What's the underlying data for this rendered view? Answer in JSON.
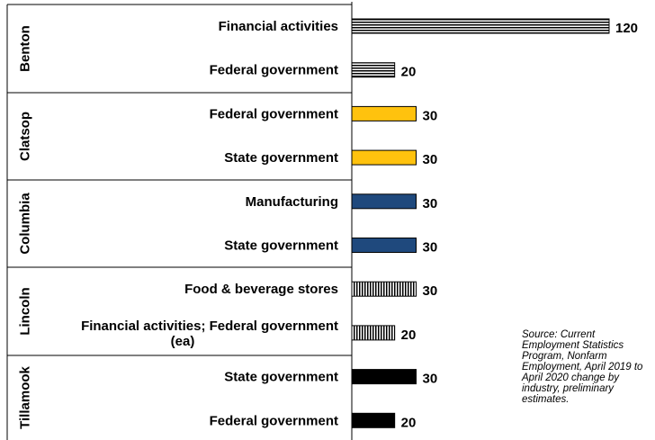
{
  "chart_data": {
    "type": "bar",
    "orientation": "horizontal",
    "xlim": [
      0,
      130
    ],
    "grid": false,
    "groups": [
      {
        "name": "Benton",
        "pattern": "horizontal-stripes",
        "color": "#000000",
        "fill": "#ffffff",
        "rows": [
          {
            "category": "Financial activities",
            "value": 120,
            "label": "120"
          },
          {
            "category": "Federal government",
            "value": 20,
            "label": "20"
          }
        ]
      },
      {
        "name": "Clatsop",
        "pattern": "solid",
        "color": "#FFC20E",
        "fill": "#FFC20E",
        "rows": [
          {
            "category": "Federal government",
            "value": 30,
            "label": "30"
          },
          {
            "category": "State government",
            "value": 30,
            "label": "30"
          }
        ]
      },
      {
        "name": "Columbia",
        "pattern": "solid",
        "color": "#1F497D",
        "fill": "#1F497D",
        "rows": [
          {
            "category": "Manufacturing",
            "value": 30,
            "label": "30"
          },
          {
            "category": "State government",
            "value": 30,
            "label": "30"
          }
        ]
      },
      {
        "name": "Lincoln",
        "pattern": "vertical-stripes",
        "color": "#000000",
        "fill": "#ffffff",
        "rows": [
          {
            "category": "Food & beverage stores",
            "value": 30,
            "label": "30"
          },
          {
            "category": "Financial activities; Federal government (ea)",
            "lines": [
              "Financial activities; Federal government",
              "(ea)"
            ],
            "value": 20,
            "label": "20"
          }
        ]
      },
      {
        "name": "Tillamook",
        "pattern": "solid",
        "color": "#000000",
        "fill": "#000000",
        "rows": [
          {
            "category": "State government",
            "value": 30,
            "label": "30"
          },
          {
            "category": "Federal government",
            "value": 20,
            "label": "20"
          }
        ]
      }
    ]
  },
  "source_note": "Source: Current Employment Statistics Program, Nonfarm Employment, April 2019 to April 2020 change by industry, preliminary estimates."
}
